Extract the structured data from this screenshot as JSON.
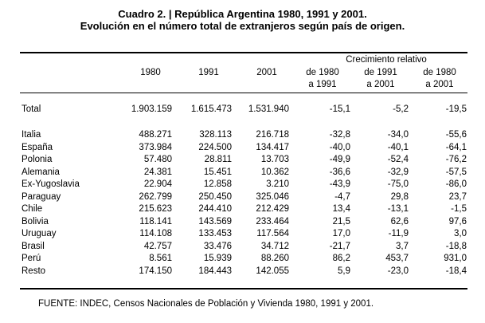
{
  "title": {
    "line1": "Cuadro 2. | República Argentina 1980, 1991 y 2001.",
    "line2": "Evolución en el número total de extranjeros según país de origen."
  },
  "header": {
    "group_label": "Crecimiento relativo",
    "years": [
      "1980",
      "1991",
      "2001"
    ],
    "growth_top": [
      "de 1980",
      "de 1991",
      "de 1980"
    ],
    "growth_bottom": [
      "a 1991",
      "a 2001",
      "a 2001"
    ]
  },
  "total": {
    "label": "Total",
    "values": [
      "1.903.159",
      "1.615.473",
      "1.531.940",
      "-15,1",
      "-5,2",
      "-19,5"
    ]
  },
  "rows": [
    {
      "label": "Italia",
      "values": [
        "488.271",
        "328.113",
        "216.718",
        "-32,8",
        "-34,0",
        "-55,6"
      ]
    },
    {
      "label": "España",
      "values": [
        "373.984",
        "224.500",
        "134.417",
        "-40,0",
        "-40,1",
        "-64,1"
      ]
    },
    {
      "label": "Polonia",
      "values": [
        "57.480",
        "28.811",
        "13.703",
        "-49,9",
        "-52,4",
        "-76,2"
      ]
    },
    {
      "label": "Alemania",
      "values": [
        "24.381",
        "15.451",
        "10.362",
        "-36,6",
        "-32,9",
        "-57,5"
      ]
    },
    {
      "label": "Ex-Yugoslavia",
      "values": [
        "22.904",
        "12.858",
        "3.210",
        "-43,9",
        "-75,0",
        "-86,0"
      ]
    },
    {
      "label": "Paraguay",
      "values": [
        "262.799",
        "250.450",
        "325.046",
        "-4,7",
        "29,8",
        "23,7"
      ]
    },
    {
      "label": "Chile",
      "values": [
        "215.623",
        "244.410",
        "212.429",
        "13,4",
        "-13,1",
        "-1,5"
      ]
    },
    {
      "label": "Bolivia",
      "values": [
        "118.141",
        "143.569",
        "233.464",
        "21,5",
        "62,6",
        "97,6"
      ]
    },
    {
      "label": "Uruguay",
      "values": [
        "114.108",
        "133.453",
        "117.564",
        "17,0",
        "-11,9",
        "3,0"
      ]
    },
    {
      "label": "Brasil",
      "values": [
        "42.757",
        "33.476",
        "34.712",
        "-21,7",
        "3,7",
        "-18,8"
      ]
    },
    {
      "label": "Perú",
      "values": [
        "8.561",
        "15.939",
        "88.260",
        "86,2",
        "453,7",
        "931,0"
      ]
    },
    {
      "label": "Resto",
      "values": [
        "174.150",
        "184.443",
        "142.055",
        "5,9",
        "-23,0",
        "-18,4"
      ]
    }
  ],
  "source": "FUENTE: INDEC, Censos Nacionales de Población y Vivienda 1980, 1991 y 2001."
}
